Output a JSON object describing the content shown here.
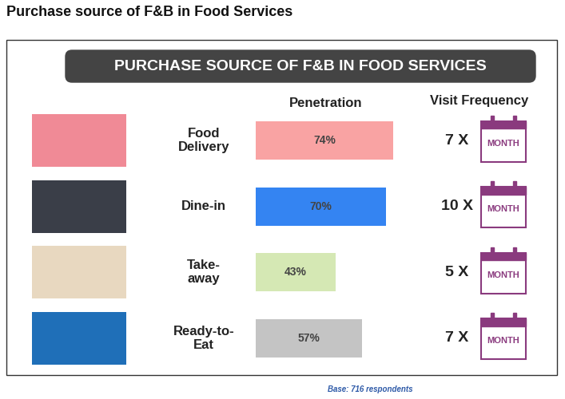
{
  "chart_data": {
    "type": "bar",
    "orientation": "horizontal",
    "title": "Purchase source of F&B in Food Services",
    "subtitle": "PURCHASE SOURCE OF F&B IN FOOD SERVICES",
    "columns": [
      "Penetration",
      "Visit Frequency"
    ],
    "categories": [
      "Food\nDelivery",
      "Dine-in",
      "Take-\naway",
      "Ready-to-\nEat"
    ],
    "values": [
      74,
      70,
      43,
      57
    ],
    "value_labels": [
      "74%",
      "70%",
      "43%",
      "57%"
    ],
    "colors": [
      "#f9a3a3",
      "#3484f2",
      "#d5e8b4",
      "#c4c4c4"
    ],
    "frequency_labels": [
      "7 X",
      "10 X",
      "5 X",
      "7 X"
    ],
    "frequency_unit": "MONTH",
    "note": "Base: 716 respondents",
    "xlim": [
      0,
      100
    ],
    "data_labels": true,
    "tick_labels": false
  }
}
